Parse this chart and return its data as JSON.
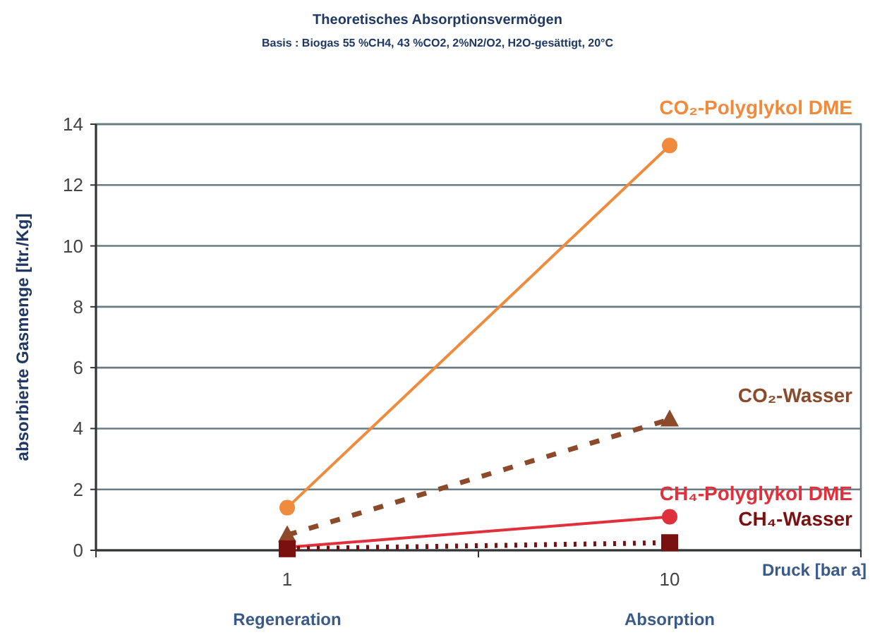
{
  "chart_data": {
    "type": "line",
    "title": "Theoretisches Absorptionsvermögen",
    "subtitle": "Basis : Biogas 55 %CH4, 43 %CO2, 2%N2/O2, H2O-gesättigt, 20°C",
    "xlabel": "Druck [bar a]",
    "ylabel": "absorbierte Gasmenge [ltr./Kg]",
    "categories": [
      "1",
      "10"
    ],
    "annotations": [
      "Regeneration",
      "Absorption"
    ],
    "series": [
      {
        "name": "CO₂-Polyglykol DME",
        "color": "#f08a3c",
        "values": [
          1.4,
          13.3
        ],
        "marker": "circle",
        "line_style": "solid"
      },
      {
        "name": "CO₂-Wasser",
        "color": "#8b4a2a",
        "values": [
          0.5,
          4.3
        ],
        "marker": "triangle",
        "line_style": "dashed"
      },
      {
        "name": "CH₄-Polyglykol DME",
        "color": "#e0303c",
        "values": [
          0.1,
          1.1
        ],
        "marker": "circle",
        "line_style": "solid"
      },
      {
        "name": "CH₄-Wasser",
        "color": "#7a1010",
        "values": [
          0.05,
          0.25
        ],
        "marker": "square",
        "line_style": "dotted"
      }
    ],
    "ylim": [
      0,
      14
    ],
    "yticks": [
      0,
      2,
      4,
      6,
      8,
      10,
      12,
      14
    ],
    "grid": "y",
    "legend": false
  }
}
